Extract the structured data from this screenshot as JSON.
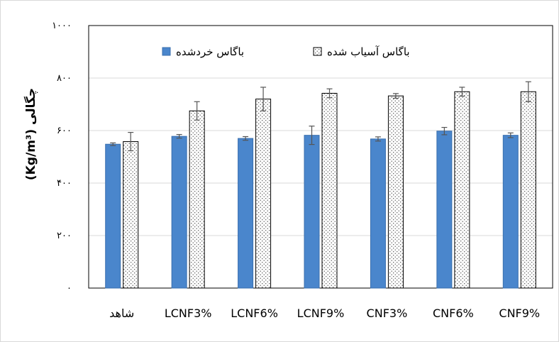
{
  "chart_data": {
    "type": "bar",
    "ylabel": "چگالی (Kg/m³)",
    "ylim": [
      0,
      1000
    ],
    "yticks": [
      0,
      200,
      400,
      600,
      800,
      1000
    ],
    "ytick_labels": [
      "۰",
      "۲۰۰",
      "۴۰۰",
      "۶۰۰",
      "۸۰۰",
      "۱۰۰۰"
    ],
    "categories": [
      "شاهد",
      "LCNF3%",
      "LCNF6%",
      "LCNF9%",
      "CNF3%",
      "CNF6%",
      "CNF9%"
    ],
    "series": [
      {
        "name": "باگاس خردشده",
        "values": [
          548,
          578,
          570,
          582,
          568,
          598,
          582
        ],
        "errors": [
          5,
          7,
          7,
          35,
          8,
          14,
          9
        ],
        "color": "#4a86cc",
        "pattern": "solid"
      },
      {
        "name": "باگاس آسیاب شده",
        "values": [
          558,
          675,
          720,
          742,
          732,
          748,
          748
        ],
        "errors": [
          35,
          35,
          45,
          17,
          9,
          17,
          38
        ],
        "color": "#ffffff",
        "pattern": "dots"
      }
    ],
    "legend_position": "top",
    "grid": true
  }
}
